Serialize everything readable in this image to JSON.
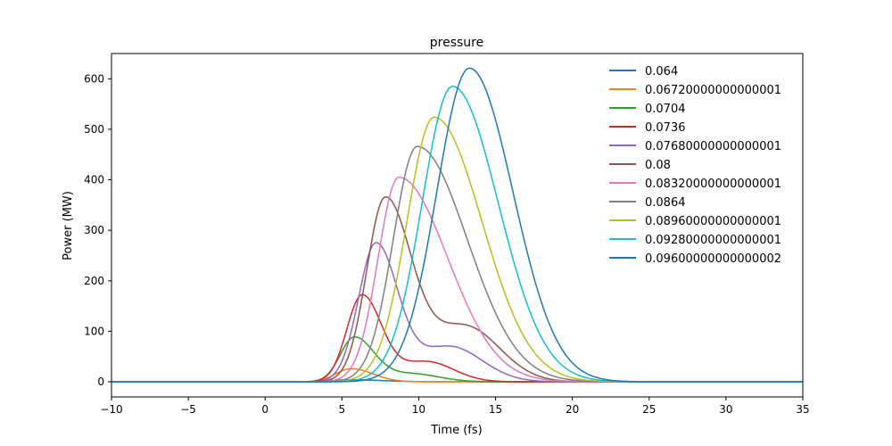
{
  "chart_data": {
    "type": "line",
    "title": "pressure",
    "xlabel": "Time (fs)",
    "ylabel": "Power (MW)",
    "xlim": [
      -10,
      35
    ],
    "ylim": [
      -30,
      650
    ],
    "xticks": [
      -10,
      -5,
      0,
      5,
      10,
      15,
      20,
      25,
      30,
      35
    ],
    "xtick_labels": [
      "−10",
      "−5",
      "0",
      "5",
      "10",
      "15",
      "20",
      "25",
      "30",
      "35"
    ],
    "yticks": [
      0,
      100,
      200,
      300,
      400,
      500,
      600
    ],
    "ytick_labels": [
      "0",
      "100",
      "200",
      "300",
      "400",
      "500",
      "600"
    ],
    "grid": false,
    "legend_position": "top-right",
    "series": [
      {
        "name": "0.064",
        "color": "#1f77b4",
        "peak_x": 5.5,
        "peak_y": 4,
        "width_rise": 1.8,
        "width_fall": 3.0
      },
      {
        "name": "0.06720000000000001",
        "color": "#ff7f0e",
        "peak_x": 5.6,
        "peak_y": 26,
        "width_rise": 1.4,
        "width_fall": 2.0
      },
      {
        "name": "0.0704",
        "color": "#2ca02c",
        "peak_x": 5.8,
        "peak_y": 87,
        "width_rise": 1.3,
        "width_fall": 1.8,
        "shoulder_x": 9.5,
        "shoulder_y": 16,
        "shoulder_w": 2.5
      },
      {
        "name": "0.0736",
        "color": "#d62728",
        "peak_x": 6.3,
        "peak_y": 170,
        "width_rise": 1.4,
        "width_fall": 1.8,
        "shoulder_x": 10.5,
        "shoulder_y": 40,
        "shoulder_w": 2.5
      },
      {
        "name": "0.07680000000000001",
        "color": "#9467bd",
        "peak_x": 7.2,
        "peak_y": 270,
        "width_rise": 1.6,
        "width_fall": 2.0,
        "shoulder_x": 12.0,
        "shoulder_y": 70,
        "shoulder_w": 3.0
      },
      {
        "name": "0.08",
        "color": "#8c564b",
        "peak_x": 7.8,
        "peak_y": 358,
        "width_rise": 1.7,
        "width_fall": 2.4,
        "shoulder_x": 13.0,
        "shoulder_y": 110,
        "shoulder_w": 3.2
      },
      {
        "name": "0.08320000000000001",
        "color": "#e377c2",
        "peak_x": 8.7,
        "peak_y": 405,
        "width_rise": 1.9,
        "width_fall": 4.5
      },
      {
        "name": "0.0864",
        "color": "#7f7f7f",
        "peak_x": 9.9,
        "peak_y": 466,
        "width_rise": 2.2,
        "width_fall": 4.6
      },
      {
        "name": "0.08960000000000001",
        "color": "#bcbd22",
        "peak_x": 11.0,
        "peak_y": 524,
        "width_rise": 2.5,
        "width_fall": 4.4
      },
      {
        "name": "0.09280000000000001",
        "color": "#17becf",
        "peak_x": 12.2,
        "peak_y": 585,
        "width_rise": 2.8,
        "width_fall": 4.2
      },
      {
        "name": "0.09600000000000002",
        "color": "#1f77b4",
        "peak_x": 13.3,
        "peak_y": 621,
        "width_rise": 3.0,
        "width_fall": 4.0
      }
    ]
  }
}
